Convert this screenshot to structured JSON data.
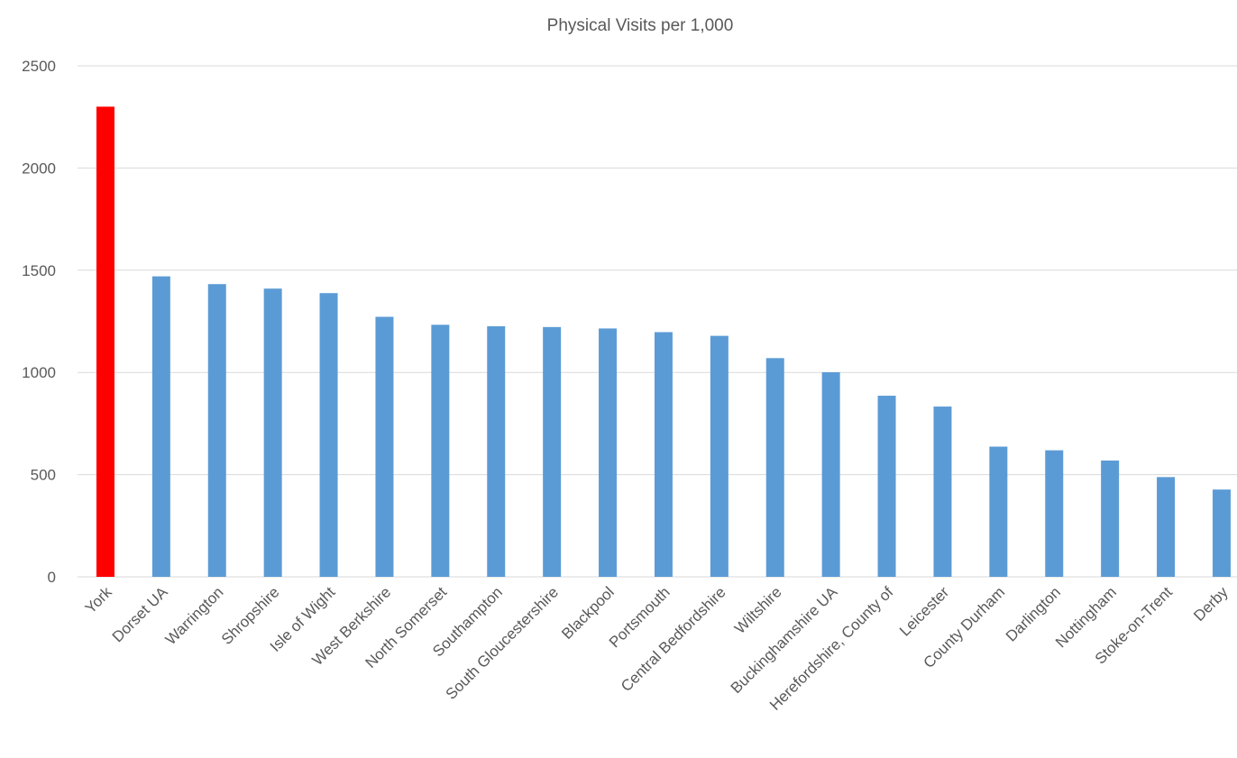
{
  "chart_data": {
    "type": "bar",
    "title": "Physical Visits per 1,000",
    "xlabel": "",
    "ylabel": "",
    "ylim": [
      0,
      2500
    ],
    "yticks": [
      0,
      500,
      1000,
      1500,
      2000,
      2500
    ],
    "grid": true,
    "legend": "none",
    "categories": [
      "York",
      "Dorset UA",
      "Warrington",
      "Shropshire",
      "Isle of Wight",
      "West Berkshire",
      "North Somerset",
      "Southampton",
      "South Gloucestershire",
      "Blackpool",
      "Portsmouth",
      "Central Bedfordshire",
      "Wiltshire",
      "Buckinghamshire UA",
      "Herefordshire, County of",
      "Leicester",
      "County Durham",
      "Darlington",
      "Nottingham",
      "Stoke-on-Trent",
      "Derby"
    ],
    "values": [
      2300,
      1470,
      1432,
      1410,
      1388,
      1272,
      1233,
      1226,
      1222,
      1215,
      1197,
      1179,
      1070,
      1001,
      886,
      833,
      637,
      619,
      569,
      488,
      427
    ],
    "bar_colors": [
      "#ff0000",
      "#5b9bd5",
      "#5b9bd5",
      "#5b9bd5",
      "#5b9bd5",
      "#5b9bd5",
      "#5b9bd5",
      "#5b9bd5",
      "#5b9bd5",
      "#5b9bd5",
      "#5b9bd5",
      "#5b9bd5",
      "#5b9bd5",
      "#5b9bd5",
      "#5b9bd5",
      "#5b9bd5",
      "#5b9bd5",
      "#5b9bd5",
      "#5b9bd5",
      "#5b9bd5",
      "#5b9bd5"
    ]
  }
}
